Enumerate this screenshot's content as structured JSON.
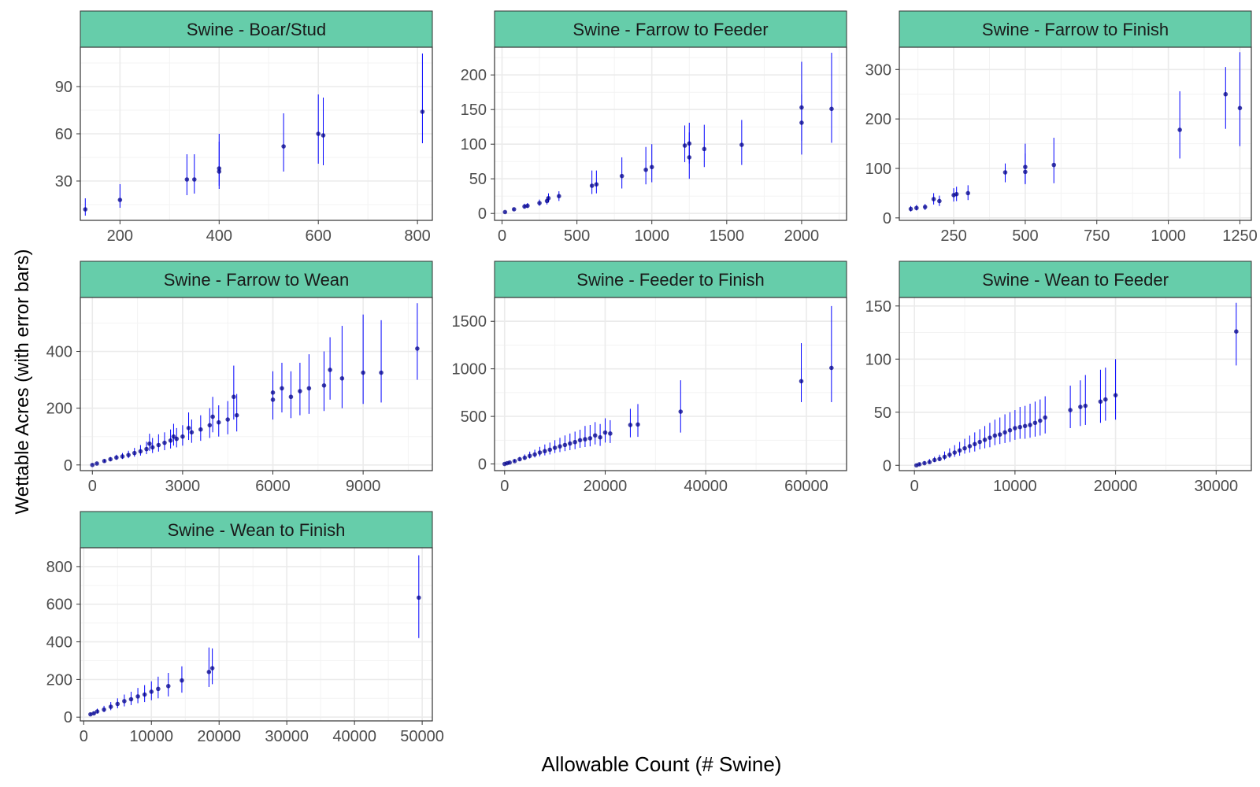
{
  "xlabel": "Allowable Count (# Swine)",
  "ylabel": "Wettable Acres (with error bars)",
  "colors": {
    "strip": "#66cdaa",
    "point": "#00008b",
    "errorbar": "#0000ff",
    "grid": "#ebebeb",
    "border": "#333333",
    "tick": "#4d4d4d"
  },
  "chart_data": [
    {
      "type": "scatter",
      "title": "Swine - Boar/Stud",
      "xlim": [
        120,
        830
      ],
      "ylim": [
        5,
        115
      ],
      "xticks": [
        200,
        400,
        600,
        800
      ],
      "yticks": [
        30,
        60,
        90
      ],
      "points": [
        [
          130,
          12,
          8,
          19
        ],
        [
          200,
          18,
          13,
          28
        ],
        [
          335,
          31,
          21,
          47
        ],
        [
          350,
          31,
          22,
          47
        ],
        [
          400,
          36,
          25,
          60
        ],
        [
          400,
          38,
          27,
          55
        ],
        [
          530,
          52,
          36,
          73
        ],
        [
          600,
          60,
          41,
          85
        ],
        [
          610,
          59,
          40,
          83
        ],
        [
          810,
          74,
          54,
          111
        ]
      ]
    },
    {
      "type": "scatter",
      "title": "Swine - Farrow to Feeder",
      "xlim": [
        -50,
        2300
      ],
      "ylim": [
        -10,
        240
      ],
      "xticks": [
        0,
        500,
        1000,
        1500,
        2000
      ],
      "yticks": [
        0,
        50,
        100,
        150,
        200
      ],
      "points": [
        [
          20,
          2,
          1,
          3
        ],
        [
          80,
          6,
          4,
          8
        ],
        [
          150,
          10,
          7,
          14
        ],
        [
          170,
          11,
          8,
          15
        ],
        [
          250,
          15,
          11,
          20
        ],
        [
          300,
          18,
          13,
          24
        ],
        [
          310,
          22,
          16,
          29
        ],
        [
          380,
          25,
          18,
          32
        ],
        [
          600,
          40,
          28,
          62
        ],
        [
          630,
          42,
          29,
          62
        ],
        [
          800,
          54,
          36,
          81
        ],
        [
          960,
          63,
          42,
          96
        ],
        [
          1000,
          67,
          45,
          100
        ],
        [
          1220,
          98,
          74,
          127
        ],
        [
          1250,
          81,
          50,
          117
        ],
        [
          1250,
          101,
          72,
          131
        ],
        [
          1350,
          93,
          67,
          128
        ],
        [
          1600,
          99,
          70,
          135
        ],
        [
          2000,
          131,
          85,
          172
        ],
        [
          2000,
          153,
          105,
          219
        ],
        [
          2200,
          151,
          102,
          232
        ]
      ]
    },
    {
      "type": "scatter",
      "title": "Swine - Farrow to Finish",
      "xlim": [
        60,
        1290
      ],
      "ylim": [
        -5,
        345
      ],
      "xticks": [
        250,
        500,
        750,
        1000,
        1250
      ],
      "yticks": [
        0,
        100,
        200,
        300
      ],
      "points": [
        [
          100,
          18,
          13,
          24
        ],
        [
          120,
          20,
          15,
          26
        ],
        [
          150,
          22,
          16,
          28
        ],
        [
          180,
          38,
          27,
          50
        ],
        [
          200,
          34,
          24,
          45
        ],
        [
          250,
          46,
          33,
          60
        ],
        [
          260,
          48,
          34,
          63
        ],
        [
          300,
          50,
          36,
          66
        ],
        [
          430,
          92,
          72,
          110
        ],
        [
          500,
          93,
          68,
          130
        ],
        [
          500,
          103,
          70,
          150
        ],
        [
          600,
          107,
          70,
          162
        ],
        [
          1040,
          178,
          120,
          256
        ],
        [
          1200,
          250,
          180,
          305
        ],
        [
          1250,
          222,
          145,
          335
        ]
      ]
    },
    {
      "type": "scatter",
      "title": "Swine - Farrow to Wean",
      "xlim": [
        -400,
        11300
      ],
      "ylim": [
        -20,
        590
      ],
      "xticks": [
        0,
        3000,
        6000,
        9000
      ],
      "yticks": [
        0,
        200,
        400
      ],
      "points": [
        [
          0,
          0,
          0,
          2
        ],
        [
          150,
          5,
          3,
          8
        ],
        [
          400,
          14,
          9,
          20
        ],
        [
          600,
          20,
          14,
          28
        ],
        [
          800,
          26,
          18,
          36
        ],
        [
          1000,
          30,
          21,
          42
        ],
        [
          1200,
          35,
          24,
          50
        ],
        [
          1400,
          42,
          29,
          60
        ],
        [
          1600,
          48,
          33,
          70
        ],
        [
          1800,
          56,
          38,
          82
        ],
        [
          2000,
          62,
          42,
          95
        ],
        [
          2200,
          70,
          47,
          108
        ],
        [
          2400,
          78,
          52,
          115
        ],
        [
          2600,
          86,
          58,
          125
        ],
        [
          2800,
          92,
          62,
          130
        ],
        [
          3000,
          100,
          68,
          140
        ],
        [
          3300,
          115,
          78,
          160
        ],
        [
          3600,
          125,
          85,
          175
        ],
        [
          3900,
          140,
          95,
          200
        ],
        [
          4200,
          150,
          100,
          210
        ],
        [
          4500,
          160,
          108,
          225
        ],
        [
          4800,
          175,
          118,
          250
        ],
        [
          1900,
          75,
          50,
          110
        ],
        [
          2700,
          100,
          68,
          145
        ],
        [
          3200,
          130,
          88,
          185
        ],
        [
          4000,
          170,
          115,
          240
        ],
        [
          4700,
          240,
          160,
          350
        ],
        [
          6000,
          230,
          160,
          300
        ],
        [
          6000,
          255,
          175,
          330
        ],
        [
          6300,
          270,
          185,
          360
        ],
        [
          6600,
          240,
          165,
          330
        ],
        [
          6900,
          260,
          175,
          360
        ],
        [
          7200,
          270,
          180,
          390
        ],
        [
          7700,
          280,
          190,
          400
        ],
        [
          7900,
          335,
          230,
          450
        ],
        [
          8300,
          305,
          200,
          490
        ],
        [
          9000,
          325,
          215,
          530
        ],
        [
          9600,
          325,
          220,
          510
        ],
        [
          10800,
          410,
          300,
          570
        ]
      ]
    },
    {
      "type": "scatter",
      "title": "Swine - Feeder to Finish",
      "xlim": [
        -2000,
        68000
      ],
      "ylim": [
        -70,
        1750
      ],
      "xticks": [
        0,
        20000,
        40000,
        60000
      ],
      "yticks": [
        0,
        500,
        1000,
        1500
      ],
      "points": [
        [
          0,
          0,
          0,
          5
        ],
        [
          500,
          8,
          5,
          12
        ],
        [
          1000,
          15,
          10,
          25
        ],
        [
          2000,
          30,
          20,
          50
        ],
        [
          3000,
          50,
          33,
          75
        ],
        [
          4000,
          65,
          44,
          100
        ],
        [
          5000,
          85,
          57,
          130
        ],
        [
          6000,
          100,
          68,
          150
        ],
        [
          7000,
          120,
          80,
          180
        ],
        [
          8000,
          135,
          90,
          205
        ],
        [
          9000,
          150,
          100,
          225
        ],
        [
          10000,
          170,
          115,
          250
        ],
        [
          11000,
          185,
          125,
          275
        ],
        [
          12000,
          200,
          135,
          300
        ],
        [
          13000,
          215,
          145,
          320
        ],
        [
          14000,
          230,
          155,
          340
        ],
        [
          15000,
          250,
          170,
          360
        ],
        [
          16000,
          260,
          178,
          400
        ],
        [
          17000,
          270,
          185,
          410
        ],
        [
          18000,
          300,
          205,
          440
        ],
        [
          19000,
          280,
          190,
          420
        ],
        [
          20000,
          330,
          225,
          480
        ],
        [
          21000,
          320,
          220,
          460
        ],
        [
          25000,
          410,
          280,
          580
        ],
        [
          26500,
          415,
          285,
          630
        ],
        [
          35000,
          550,
          330,
          880
        ],
        [
          59000,
          870,
          650,
          1270
        ],
        [
          65000,
          1010,
          650,
          1660
        ]
      ]
    },
    {
      "type": "scatter",
      "title": "Swine - Wean to Feeder",
      "xlim": [
        -1500,
        33500
      ],
      "ylim": [
        -5,
        158
      ],
      "xticks": [
        0,
        10000,
        20000,
        30000
      ],
      "yticks": [
        0,
        50,
        100,
        150
      ],
      "points": [
        [
          200,
          0,
          0,
          1
        ],
        [
          500,
          1,
          0,
          2
        ],
        [
          1000,
          2,
          1,
          4
        ],
        [
          1500,
          3,
          2,
          6
        ],
        [
          2000,
          5,
          3,
          8
        ],
        [
          2500,
          6,
          4,
          10
        ],
        [
          3000,
          8,
          5,
          13
        ],
        [
          3500,
          10,
          7,
          16
        ],
        [
          4000,
          12,
          8,
          19
        ],
        [
          4500,
          14,
          9,
          22
        ],
        [
          5000,
          16,
          11,
          25
        ],
        [
          5500,
          18,
          12,
          28
        ],
        [
          6000,
          20,
          13,
          31
        ],
        [
          6500,
          22,
          15,
          34
        ],
        [
          7000,
          24,
          16,
          37
        ],
        [
          7500,
          26,
          17,
          40
        ],
        [
          8000,
          28,
          19,
          43
        ],
        [
          8500,
          29,
          20,
          45
        ],
        [
          9000,
          31,
          21,
          48
        ],
        [
          9500,
          33,
          22,
          50
        ],
        [
          10000,
          35,
          24,
          52
        ],
        [
          10500,
          36,
          25,
          55
        ],
        [
          11000,
          37,
          25,
          56
        ],
        [
          11500,
          38,
          26,
          58
        ],
        [
          12000,
          40,
          27,
          60
        ],
        [
          12500,
          42,
          28,
          62
        ],
        [
          13000,
          45,
          30,
          65
        ],
        [
          15500,
          52,
          35,
          75
        ],
        [
          16500,
          55,
          37,
          80
        ],
        [
          17000,
          56,
          38,
          85
        ],
        [
          18500,
          60,
          40,
          90
        ],
        [
          19000,
          62,
          42,
          92
        ],
        [
          20000,
          66,
          43,
          100
        ],
        [
          32000,
          126,
          94,
          153
        ]
      ]
    },
    {
      "type": "scatter",
      "title": "Swine - Wean to Finish",
      "xlim": [
        -500,
        51500
      ],
      "ylim": [
        -20,
        900
      ],
      "xticks": [
        0,
        10000,
        20000,
        30000,
        40000,
        50000
      ],
      "yticks": [
        0,
        200,
        400,
        600,
        800
      ],
      "points": [
        [
          1000,
          15,
          10,
          22
        ],
        [
          1500,
          20,
          14,
          30
        ],
        [
          2000,
          30,
          20,
          45
        ],
        [
          3000,
          40,
          27,
          60
        ],
        [
          4000,
          55,
          37,
          80
        ],
        [
          5000,
          70,
          47,
          100
        ],
        [
          6000,
          85,
          57,
          120
        ],
        [
          7000,
          95,
          64,
          135
        ],
        [
          8000,
          110,
          74,
          155
        ],
        [
          9000,
          120,
          80,
          170
        ],
        [
          10000,
          135,
          90,
          190
        ],
        [
          11000,
          150,
          100,
          215
        ],
        [
          12500,
          165,
          110,
          235
        ],
        [
          14500,
          195,
          130,
          270
        ],
        [
          18500,
          240,
          160,
          370
        ],
        [
          19000,
          260,
          175,
          365
        ],
        [
          49500,
          635,
          420,
          860
        ]
      ]
    }
  ]
}
